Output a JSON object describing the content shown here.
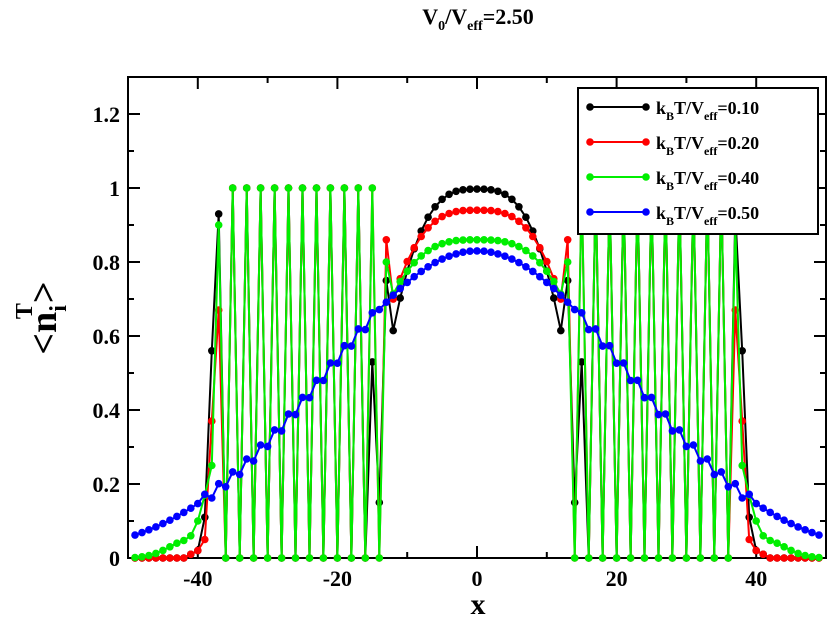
{
  "chart_data": {
    "type": "line",
    "title": "V0/Veff=2.50",
    "title_parts": {
      "base1": "V",
      "sub1": "0",
      "slash": "/V",
      "sub2": "eff",
      "tail": "=2.50"
    },
    "xlabel": "x",
    "ylabel_parts": {
      "main": "<n",
      "sub": "i",
      "sup": "T",
      "close": ">"
    },
    "xlim": [
      -50,
      50
    ],
    "ylim": [
      0,
      1.3
    ],
    "xticks": [
      -40,
      -20,
      0,
      20,
      40
    ],
    "xtick_labels": [
      "-40",
      "-20",
      "0",
      "20",
      "40"
    ],
    "yticks": [
      0,
      0.2,
      0.4,
      0.6,
      0.8,
      1.0,
      1.2
    ],
    "ytick_labels": [
      "0",
      "0.2",
      "0.4",
      "0.6",
      "0.8",
      "1",
      "1.2"
    ],
    "grid": false,
    "legend_position": "top-right",
    "legend_label_prefix": "k",
    "legend_label_sub_b": "B",
    "legend_label_mid": "T/V",
    "legend_label_sub_eff": "eff",
    "series": [
      {
        "name": "kBT/Veff=0.10",
        "value_text": "=0.10",
        "color": "#000000",
        "T": 0.1
      },
      {
        "name": "kBT/Veff=0.20",
        "value_text": "=0.20",
        "color": "#ff0000",
        "T": 0.2
      },
      {
        "name": "kBT/Veff=0.40",
        "value_text": "=0.40",
        "color": "#00ee00",
        "T": 0.4
      },
      {
        "name": "kBT/Veff=0.50",
        "value_text": "=0.50",
        "color": "#0000ff",
        "T": 0.5
      }
    ],
    "x": [
      -49,
      -48,
      -47,
      -46,
      -45,
      -44,
      -43,
      -42,
      -41,
      -40,
      -39,
      -38,
      -37,
      -36,
      -35,
      -34,
      -33,
      -32,
      -31,
      -30,
      -29,
      -28,
      -27,
      -26,
      -25,
      -24,
      -23,
      -22,
      -21,
      -20,
      -19,
      -18,
      -17,
      -16,
      -15,
      -14,
      -13,
      -12,
      -11,
      -10,
      -9,
      -8,
      -7,
      -6,
      -5,
      -4,
      -3,
      -2,
      -1,
      0,
      1,
      2,
      3,
      4,
      5,
      6,
      7,
      8,
      9,
      10,
      11,
      12,
      13,
      14,
      15,
      16,
      17,
      18,
      19,
      20,
      21,
      22,
      23,
      24,
      25,
      26,
      27,
      28,
      29,
      30,
      31,
      32,
      33,
      34,
      35,
      36,
      37,
      38,
      39,
      40,
      41,
      42,
      43,
      44,
      45,
      46,
      47,
      48,
      49
    ]
  }
}
